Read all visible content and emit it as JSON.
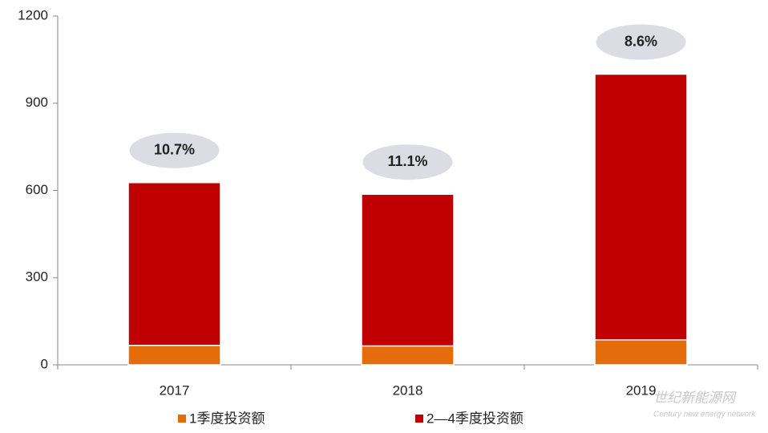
{
  "chart_data": {
    "type": "bar",
    "stacked": true,
    "categories": [
      "2017",
      "2018",
      "2019"
    ],
    "series": [
      {
        "name": "1季度投资额",
        "color": "#e46c0a",
        "values": [
          67,
          65,
          86
        ]
      },
      {
        "name": "2—4季度投资额",
        "color": "#c00000",
        "values": [
          560,
          522,
          914
        ]
      }
    ],
    "share_labels": [
      "10.7%",
      "11.1%",
      "8.6%"
    ],
    "ylim": [
      0,
      1200
    ],
    "yticks": [
      0,
      300,
      600,
      900,
      1200
    ],
    "legend": "bottom",
    "watermark": [
      "世纪新能源网",
      "Century new energy network"
    ]
  }
}
